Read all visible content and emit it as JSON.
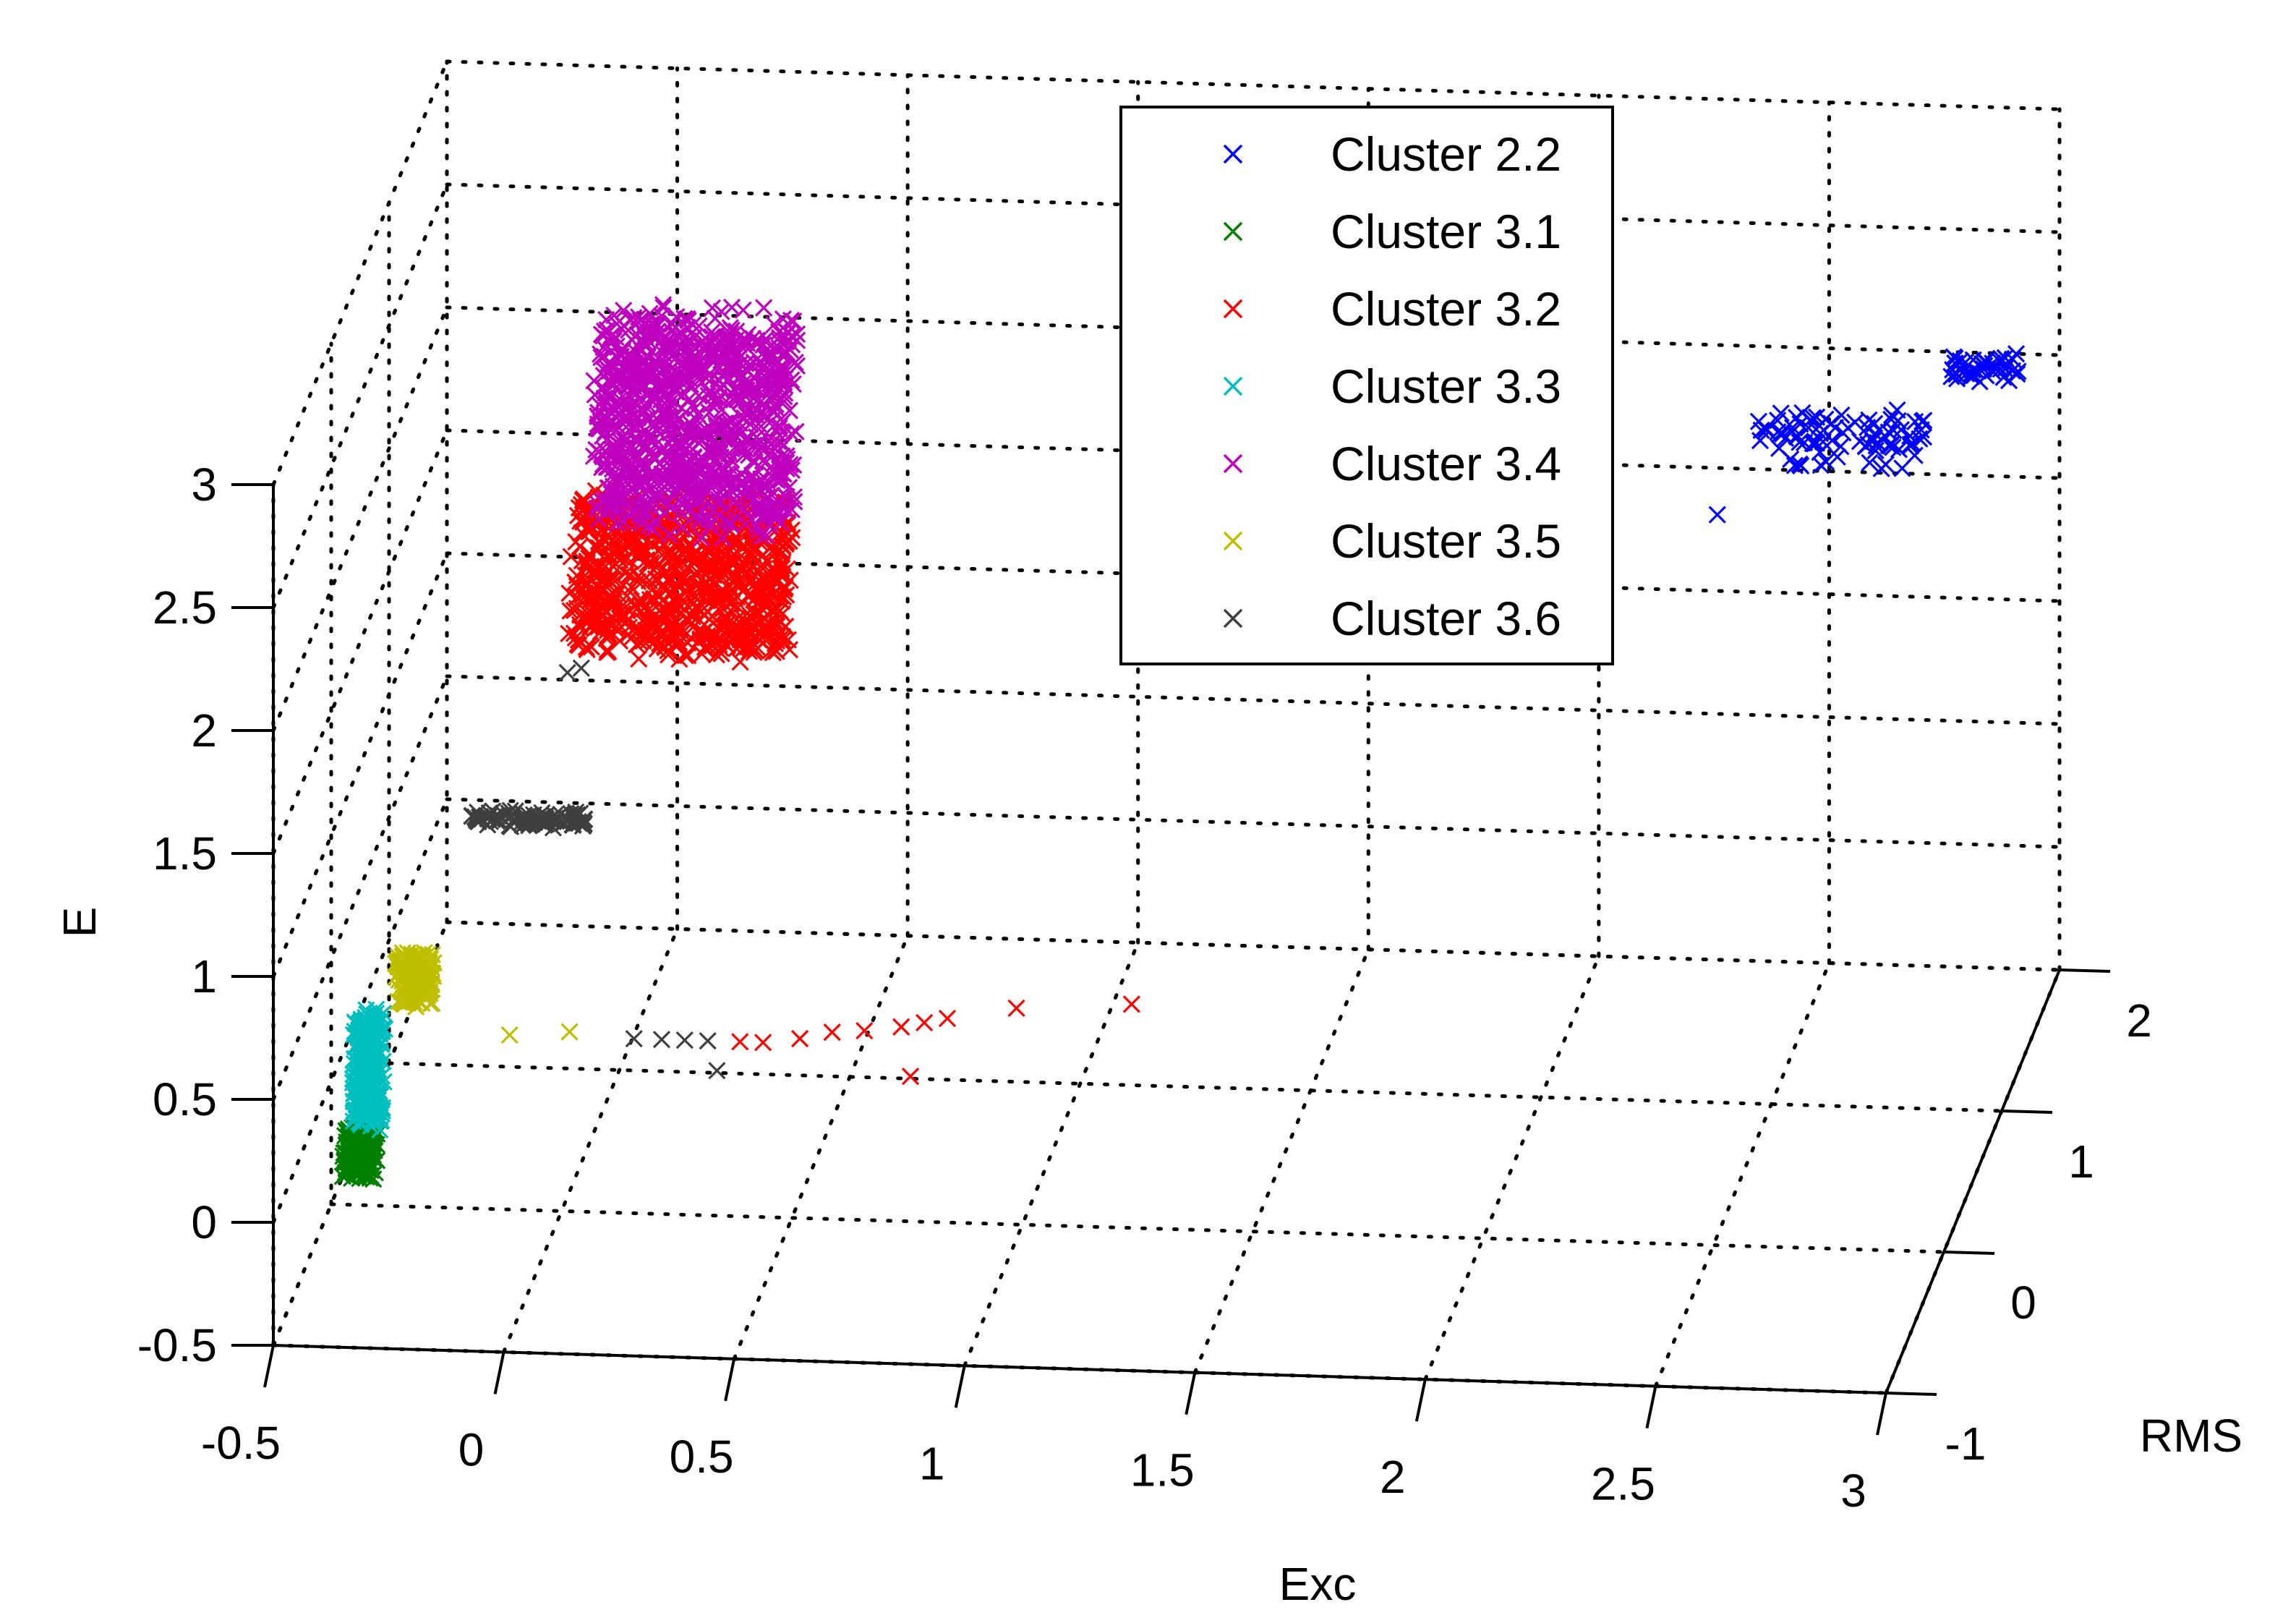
{
  "chart_data": {
    "type": "scatter",
    "projection": "3d",
    "xlabel": "Exc",
    "ylabel": "RMS",
    "zlabel": "E",
    "xlim": [
      -0.5,
      3
    ],
    "ylim": [
      -1,
      2
    ],
    "zlim": [
      -0.5,
      3
    ],
    "x_ticks": [
      "-0.5",
      "0",
      "0.5",
      "1",
      "1.5",
      "2",
      "2.5",
      "3"
    ],
    "y_ticks": [
      "-1",
      "0",
      "1",
      "2"
    ],
    "z_ticks": [
      "-0.5",
      "0",
      "0.5",
      "1",
      "1.5",
      "2",
      "2.5",
      "3"
    ],
    "grid": true,
    "legend_position": "top-right",
    "marker": "x",
    "series": [
      {
        "name": "Cluster 2.2",
        "color": "#0000ff",
        "clusters": [
          {
            "x": [
              1.95,
              2.02
            ],
            "y": [
              1.9,
              1.95
            ],
            "z": [
              1.55,
              1.6
            ],
            "n": 30
          },
          {
            "x": [
              2.4,
              2.75
            ],
            "y": [
              1.55,
              1.7
            ],
            "z": [
              1.75,
              1.95
            ],
            "n": 90
          },
          {
            "x": [
              2.8,
              2.95
            ],
            "y": [
              1.7,
              1.75
            ],
            "z": [
              2.05,
              2.15
            ],
            "n": 40
          }
        ],
        "points": [
          {
            "x": 2.32,
            "y": 1.5,
            "z": 1.6
          }
        ]
      },
      {
        "name": "Cluster 3.1",
        "color": "#007f00",
        "clusters": [
          {
            "x": [
              -0.4,
              -0.33
            ],
            "y": [
              -0.6,
              -0.55
            ],
            "z": [
              -0.05,
              0.15
            ],
            "n": 180
          }
        ],
        "points": []
      },
      {
        "name": "Cluster 3.2",
        "color": "#ff0000",
        "clusters": [
          {
            "x": [
              -0.05,
              0.42
            ],
            "y": [
              0.5,
              0.7
            ],
            "z": [
              1.45,
              2.05
            ],
            "n": 850
          }
        ],
        "points": [
          {
            "x": 0.5,
            "y": -0.5,
            "z": 0.5
          },
          {
            "x": 0.58,
            "y": -0.5,
            "z": 0.52
          },
          {
            "x": 0.65,
            "y": -0.5,
            "z": 0.55
          },
          {
            "x": 0.72,
            "y": -0.5,
            "z": 0.56
          },
          {
            "x": 0.8,
            "y": -0.5,
            "z": 0.58
          },
          {
            "x": 0.85,
            "y": -0.5,
            "z": 0.6
          },
          {
            "x": 0.9,
            "y": -0.5,
            "z": 0.62
          },
          {
            "x": 1.05,
            "y": -0.5,
            "z": 0.67
          },
          {
            "x": 1.3,
            "y": -0.5,
            "z": 0.7
          },
          {
            "x": 0.82,
            "y": -0.5,
            "z": 0.38
          },
          {
            "x": 0.45,
            "y": -0.5,
            "z": 0.5
          }
        ]
      },
      {
        "name": "Cluster 3.3",
        "color": "#00bfbf",
        "clusters": [
          {
            "x": [
              -0.38,
              -0.32
            ],
            "y": [
              -0.6,
              -0.5
            ],
            "z": [
              0.15,
              0.6
            ],
            "n": 280
          }
        ],
        "points": []
      },
      {
        "name": "Cluster 3.4",
        "color": "#bf00bf",
        "clusters": [
          {
            "x": [
              0,
              0.42
            ],
            "y": [
              0.5,
              0.8
            ],
            "z": [
              1.95,
              2.75
            ],
            "n": 1000
          }
        ],
        "points": []
      },
      {
        "name": "Cluster 3.5",
        "color": "#bfbf00",
        "clusters": [
          {
            "x": [
              -0.3,
              -0.22
            ],
            "y": [
              -0.5,
              -0.45
            ],
            "z": [
              0.6,
              0.8
            ],
            "n": 160
          }
        ],
        "points": [
          {
            "x": -0.05,
            "y": -0.5,
            "z": 0.5
          },
          {
            "x": 0.08,
            "y": -0.5,
            "z": 0.52
          }
        ]
      },
      {
        "name": "Cluster 3.6",
        "color": "#3f3f3f",
        "clusters": [
          {
            "x": [
              -0.2,
              0.05
            ],
            "y": [
              0.0,
              0.05
            ],
            "z": [
              1.05,
              1.1
            ],
            "n": 100
          }
        ],
        "points": [
          {
            "x": 0.22,
            "y": -0.5,
            "z": 0.5
          },
          {
            "x": 0.28,
            "y": -0.5,
            "z": 0.5
          },
          {
            "x": 0.33,
            "y": -0.5,
            "z": 0.5
          },
          {
            "x": 0.38,
            "y": -0.5,
            "z": 0.5
          },
          {
            "x": 0.4,
            "y": -0.5,
            "z": 0.38
          },
          {
            "x": -0.05,
            "y": 0.5,
            "z": 1.4
          },
          {
            "x": -0.02,
            "y": 0.5,
            "z": 1.42
          }
        ]
      }
    ]
  }
}
